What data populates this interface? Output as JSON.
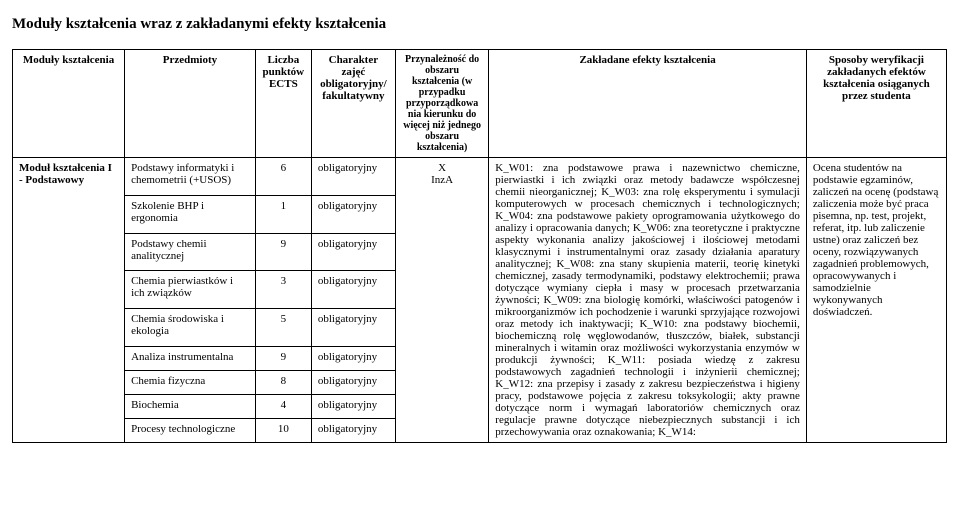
{
  "page_title": "Moduły kształcenia wraz z zakładanymi efekty kształcenia",
  "headers": {
    "module": "Moduły kształcenia",
    "subjects": "Przedmioty",
    "ects": "Liczba punktów ECTS",
    "character": "Charakter zajęć obligatoryjny/ fakultatywny",
    "area": "Przynależność do obszaru kształcenia (w przypadku przyporządkowa nia kierunku do więcej niż jednego obszaru kształcenia)",
    "effects": "Zakładane efekty kształcenia",
    "verify": "Sposoby weryfikacji zakładanych efektów kształcenia osiąganych przez studenta"
  },
  "module_name": "Moduł kształcenia I - Podstawowy",
  "area_code": "X\nInzA",
  "obligatory": "obligatoryjny",
  "subjects": [
    {
      "name": "Podstawy informatyki i chemometrii (+USOS)",
      "ects": "6"
    },
    {
      "name": "Szkolenie BHP i ergonomia",
      "ects": "1"
    },
    {
      "name": "Podstawy chemii analitycznej",
      "ects": "9"
    },
    {
      "name": "Chemia pierwiastków i ich związków",
      "ects": "3"
    },
    {
      "name": "Chemia środowiska i ekologia",
      "ects": "5"
    },
    {
      "name": "Analiza instrumentalna",
      "ects": "9"
    },
    {
      "name": "Chemia fizyczna",
      "ects": "8"
    },
    {
      "name": "Biochemia",
      "ects": "4"
    },
    {
      "name": "Procesy technologiczne",
      "ects": "10"
    }
  ],
  "effects_text": "K_W01: zna podstawowe prawa i nazewnictwo chemiczne, pierwiastki i ich związki oraz metody badawcze współczesnej chemii nieorganicznej; K_W03: zna rolę eksperymentu i symulacji komputerowych w procesach chemicznych i technologicznych; K_W04: zna podstawowe pakiety oprogramowania użytkowego do analizy i opracowania danych; K_W06: zna teoretyczne i praktyczne aspekty wykonania analizy jakościowej i ilościowej metodami klasycznymi i instrumentalnymi oraz zasady działania aparatury analitycznej; K_W08: zna stany skupienia materii, teorię kinetyki chemicznej, zasady termodynamiki, podstawy elektrochemii; prawa dotyczące wymiany ciepła i masy w procesach przetwarzania żywności; K_W09: zna biologię komórki, właściwości patogenów i mikroorganizmów ich pochodzenie i warunki sprzyjające rozwojowi oraz metody ich inaktywacji; K_W10: zna podstawy biochemii, biochemiczną rolę węglowodanów, tłuszczów, białek, substancji mineralnych i witamin oraz możliwości wykorzystania enzymów w produkcji żywności; K_W11: posiada wiedzę z zakresu podstawowych zagadnień technologii i inżynierii chemicznej; K_W12: zna przepisy i zasady z zakresu bezpieczeństwa i higieny pracy, podstawowe pojęcia z zakresu toksykologii; akty prawne dotyczące norm i wymagań laboratoriów chemicznych oraz regulacje prawne dotyczące niebezpiecznych substancji i ich przechowywania oraz oznakowania; K_W14:",
  "verify_text": "Ocena studentów na podstawie egzaminów, zaliczeń na ocenę (podstawą zaliczenia może być praca pisemna, np. test, projekt, referat, itp. lub zaliczenie ustne) oraz zaliczeń bez oceny, rozwiązywanych zagadnień problemowych, opracowywanych i samodzielnie wykonywanych doświadczeń."
}
